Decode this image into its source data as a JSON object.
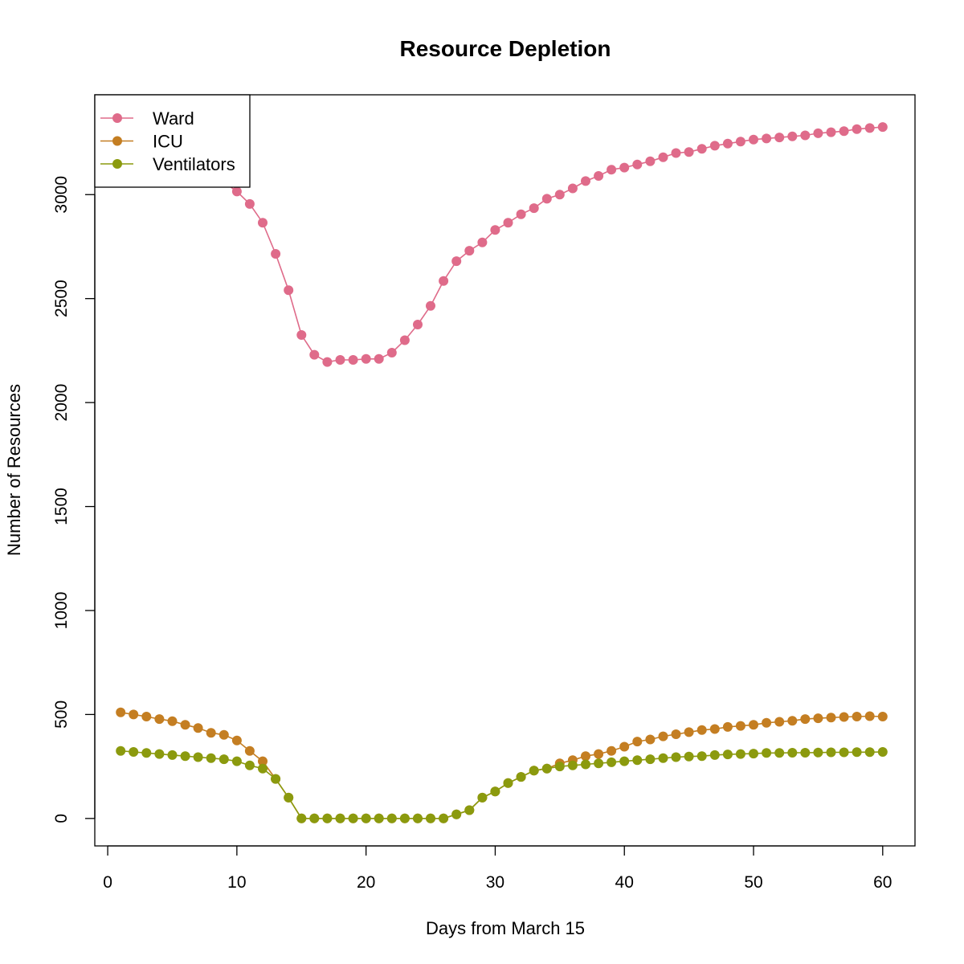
{
  "chart_data": {
    "type": "line",
    "title": "Resource Depletion",
    "xlabel": "Days from March 15",
    "ylabel": "Number of Resources",
    "xlim": [
      -1,
      62.5
    ],
    "ylim": [
      -132,
      3480
    ],
    "x_ticks": [
      0,
      10,
      20,
      30,
      40,
      50,
      60
    ],
    "y_ticks": [
      0,
      500,
      1000,
      1500,
      2000,
      2500,
      3000
    ],
    "legend_position": "top-left",
    "grid": false,
    "x": [
      1,
      2,
      3,
      4,
      5,
      6,
      7,
      8,
      9,
      10,
      11,
      12,
      13,
      14,
      15,
      16,
      17,
      18,
      19,
      20,
      21,
      22,
      23,
      24,
      25,
      26,
      27,
      28,
      29,
      30,
      31,
      32,
      33,
      34,
      35,
      36,
      37,
      38,
      39,
      40,
      41,
      42,
      43,
      44,
      45,
      46,
      47,
      48,
      49,
      50,
      51,
      52,
      53,
      54,
      55,
      56,
      57,
      58,
      59,
      60
    ],
    "series": [
      {
        "name": "Ward",
        "color": "#DF6B8A",
        "values": [
          3300,
          3280,
          3255,
          3230,
          3200,
          3170,
          3135,
          3100,
          3060,
          3015,
          2955,
          2865,
          2715,
          2540,
          2325,
          2230,
          2195,
          2205,
          2205,
          2210,
          2210,
          2240,
          2300,
          2375,
          2465,
          2585,
          2680,
          2730,
          2770,
          2830,
          2865,
          2905,
          2935,
          2980,
          3000,
          3030,
          3065,
          3090,
          3120,
          3130,
          3145,
          3160,
          3180,
          3200,
          3205,
          3220,
          3235,
          3245,
          3255,
          3265,
          3270,
          3275,
          3280,
          3285,
          3295,
          3300,
          3305,
          3315,
          3320,
          3325
        ]
      },
      {
        "name": "ICU",
        "color": "#C47E22",
        "values": [
          510,
          500,
          490,
          478,
          468,
          450,
          435,
          412,
          402,
          375,
          325,
          275,
          190,
          100,
          0,
          0,
          0,
          0,
          0,
          0,
          0,
          0,
          0,
          0,
          0,
          0,
          20,
          40,
          100,
          130,
          170,
          200,
          230,
          240,
          265,
          280,
          300,
          310,
          325,
          345,
          370,
          380,
          395,
          405,
          415,
          425,
          430,
          440,
          445,
          450,
          460,
          465,
          470,
          478,
          482,
          485,
          488,
          490,
          492,
          490
        ]
      },
      {
        "name": "Ventilators",
        "color": "#8B9A0E",
        "values": [
          325,
          320,
          315,
          310,
          305,
          300,
          295,
          290,
          285,
          275,
          255,
          240,
          190,
          100,
          0,
          0,
          0,
          0,
          0,
          0,
          0,
          0,
          0,
          0,
          0,
          0,
          20,
          40,
          100,
          130,
          170,
          200,
          230,
          240,
          250,
          255,
          260,
          265,
          270,
          275,
          280,
          285,
          290,
          295,
          298,
          300,
          305,
          308,
          310,
          312,
          315,
          315,
          316,
          316,
          317,
          318,
          318,
          319,
          319,
          320
        ]
      }
    ]
  }
}
